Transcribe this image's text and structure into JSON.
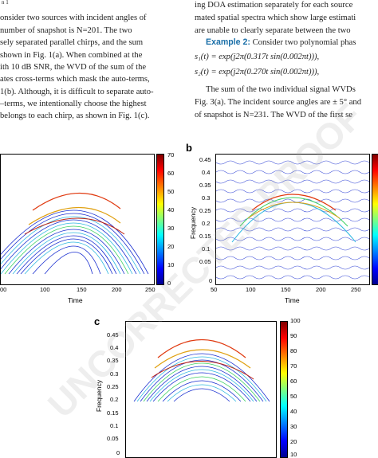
{
  "text_left": [
    "onsider two sources with incident angles of",
    " number of snapshot is N=201. The two",
    "sely separated parallel chirps, and the sum",
    " shown in Fig. 1(a). When combined at the",
    "ith 10 dB SNR, the WVD of the sum of the",
    "ates cross-terms which mask the auto-terms,",
    "1(b). Although, it is difficult to separate auto-",
    "–terms, we intentionally choose the highest",
    " belongs to each chirp, as shown in Fig. 1(c)."
  ],
  "text_right": [
    "ing DOA estimation separately for each source",
    "mated spatial spectra which show large estimati",
    "are unable to clearly separate between the two"
  ],
  "example_label": "Example 2:",
  "example_rest": " Consider two polynomial phas",
  "eq1": "s₁(t) = exp(j2π(0.317t sin(0.002πt))),",
  "eq2": "s₂(t) = exp(j2π(0.270t sin(0.002πt))),",
  "text_right2": [
    "The sum of the two individual signal WVDs",
    "Fig. 3(a). The incident source angles are ± 5° and",
    "of snapshot is N=231. The WVD of the first se"
  ],
  "watermark": "UNCORRECTED PROOF",
  "panels": {
    "a": {
      "xlabel": "Time",
      "xticks": [
        "00",
        "100",
        "150",
        "200",
        "250"
      ],
      "cbar_ticks": [
        "70",
        "60",
        "50",
        "40",
        "30",
        "20",
        "10",
        "0"
      ]
    },
    "b": {
      "label": "b",
      "xlabel": "Time",
      "ylabel": "Frequency",
      "xticks": [
        "50",
        "100",
        "150",
        "200",
        "250"
      ],
      "yticks": [
        "0.45",
        "0.4",
        "0.35",
        "0.3",
        "0.25",
        "0.2",
        "0.15",
        "0.1",
        "0.05",
        "0"
      ]
    },
    "c": {
      "label": "c",
      "ylabel": "Frequency",
      "yticks": [
        "0.45",
        "0.4",
        "0.35",
        "0.3",
        "0.25",
        "0.2",
        "0.15",
        "0.1",
        "0.05",
        "0"
      ],
      "cbar_ticks": [
        "100",
        "90",
        "80",
        "70",
        "60",
        "50",
        "40",
        "30",
        "20",
        "10"
      ]
    }
  },
  "colors": {
    "link": "#1a6fa8",
    "contour_dense": "#1a2fd0",
    "contour_mid": "#2fb8e0",
    "contour_hot": "#e03a10"
  }
}
